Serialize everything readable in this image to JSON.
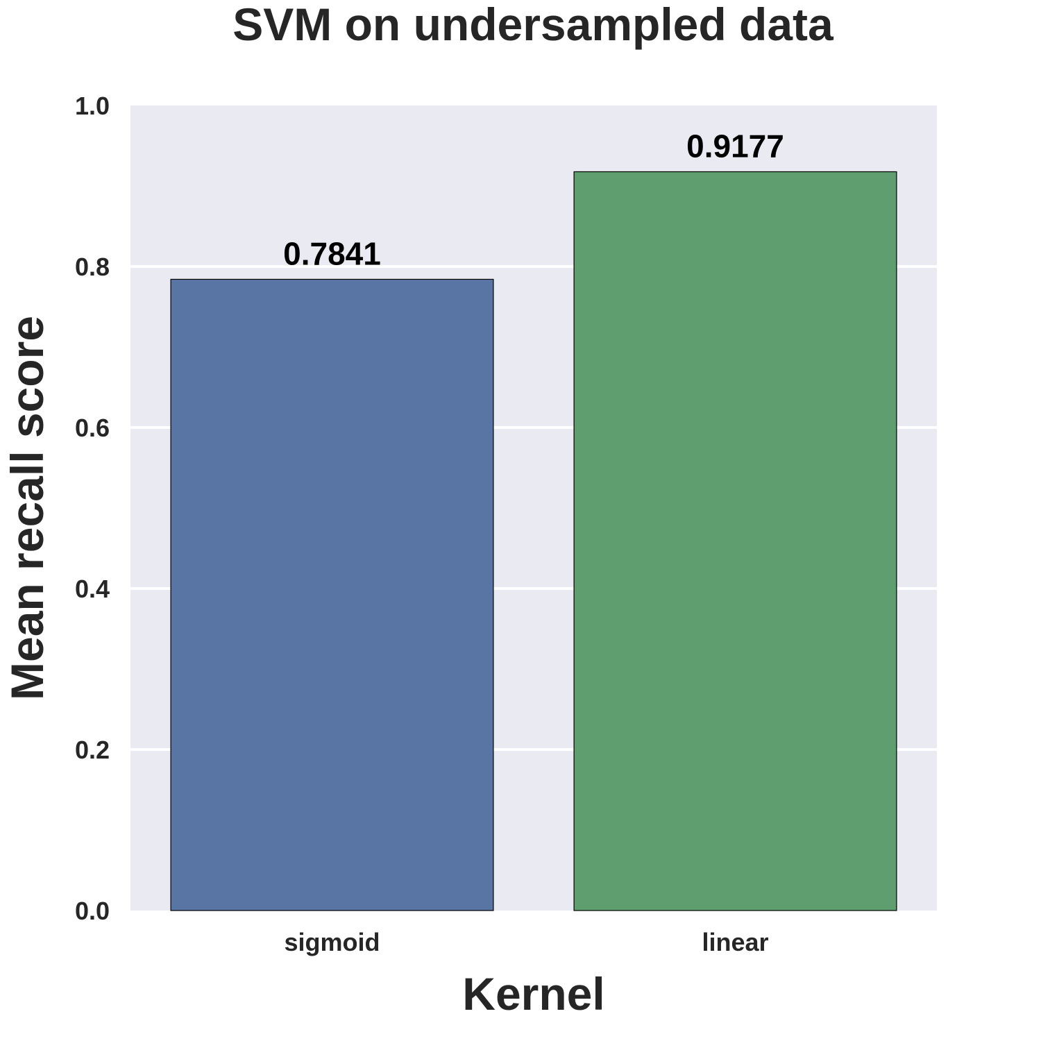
{
  "chart_data": {
    "type": "bar",
    "title": "SVM on undersampled data",
    "xlabel": "Kernel",
    "ylabel": "Mean recall score",
    "categories": [
      "sigmoid",
      "linear"
    ],
    "values": [
      0.7841,
      0.9177
    ],
    "value_labels": [
      "0.7841",
      "0.9177"
    ],
    "ylim": [
      0,
      1.0
    ],
    "yticks": [
      0.0,
      0.2,
      0.4,
      0.6,
      0.8,
      1.0
    ],
    "ytick_labels": [
      "0.0",
      "0.2",
      "0.4",
      "0.6",
      "0.8",
      "1.0"
    ],
    "grid": true,
    "colors": {
      "background": "#eaeaf2",
      "gridline": "#ffffff",
      "bars": [
        "#5875a4",
        "#5f9e6e"
      ],
      "bar_edge": "#000000"
    }
  }
}
